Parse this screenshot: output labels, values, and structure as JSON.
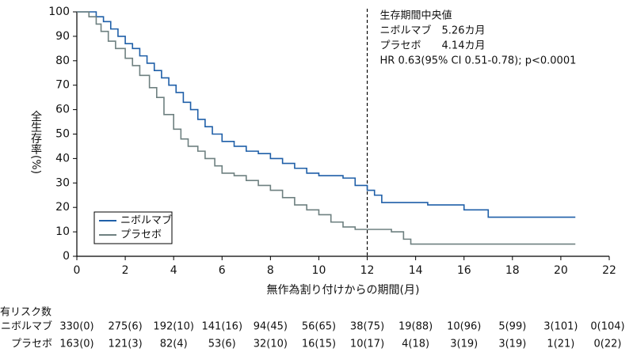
{
  "chart_data": {
    "type": "line",
    "y_label": "全生存率(%)",
    "x_label": "無作為割り付けからの期間(月)",
    "annotation": [
      "生存期間中央値",
      "ニボルマブ　5.26カ月",
      "プラセボ　　4.14カ月",
      "HR 0.63(95% CI 0.51-0.78); p<0.0001"
    ],
    "vline": 12,
    "legend_position": "lower left",
    "xlim": [
      0,
      22
    ],
    "xticks": [
      0,
      2,
      4,
      6,
      8,
      10,
      12,
      14,
      16,
      18,
      20,
      22
    ],
    "ylim": [
      0,
      100
    ],
    "yticks": [
      0,
      10,
      20,
      30,
      40,
      50,
      60,
      70,
      80,
      90,
      100
    ],
    "series": [
      {
        "name": "ニボルマブ",
        "color": "#1f5fa8",
        "x": [
          0,
          0.8,
          0.8,
          1.1,
          1.1,
          1.4,
          1.4,
          1.7,
          1.7,
          2,
          2,
          2.3,
          2.3,
          2.6,
          2.6,
          2.9,
          2.9,
          3.2,
          3.2,
          3.5,
          3.5,
          3.8,
          3.8,
          4.1,
          4.1,
          4.4,
          4.4,
          4.7,
          4.7,
          5,
          5,
          5.3,
          5.3,
          5.6,
          5.6,
          6,
          6,
          6.5,
          6.5,
          7,
          7,
          7.5,
          7.5,
          8,
          8,
          8.5,
          8.5,
          9,
          9,
          9.5,
          9.5,
          10,
          10,
          11,
          11,
          11.5,
          11.5,
          12,
          12,
          12.3,
          12.3,
          12.6,
          12.6,
          14.5,
          14.5,
          16,
          16,
          17,
          17,
          20.6
        ],
        "values": [
          100,
          100,
          98,
          98,
          96,
          96,
          93,
          93,
          90,
          90,
          87,
          87,
          85,
          85,
          82,
          82,
          79,
          79,
          76,
          76,
          73,
          73,
          70,
          70,
          67,
          67,
          63,
          63,
          60,
          60,
          56,
          56,
          53,
          53,
          50,
          50,
          47,
          47,
          45,
          45,
          43,
          43,
          42,
          42,
          40,
          40,
          38,
          38,
          36,
          36,
          34,
          34,
          33,
          33,
          32,
          32,
          29,
          29,
          27,
          27,
          25,
          25,
          22,
          22,
          21,
          21,
          19,
          19,
          16,
          16
        ]
      },
      {
        "name": "プラセボ",
        "color": "#6e8080",
        "x": [
          0,
          0.5,
          0.5,
          0.8,
          0.8,
          1,
          1,
          1.3,
          1.3,
          1.6,
          1.6,
          2,
          2,
          2.3,
          2.3,
          2.6,
          2.6,
          3,
          3,
          3.3,
          3.3,
          3.6,
          3.6,
          4,
          4,
          4.3,
          4.3,
          4.6,
          4.6,
          5,
          5,
          5.3,
          5.3,
          5.7,
          5.7,
          6,
          6,
          6.5,
          6.5,
          7,
          7,
          7.5,
          7.5,
          8,
          8,
          8.5,
          8.5,
          9,
          9,
          9.5,
          9.5,
          10,
          10,
          10.5,
          10.5,
          11,
          11,
          11.5,
          11.5,
          13,
          13,
          13.5,
          13.5,
          13.8,
          13.8,
          20.6
        ],
        "values": [
          100,
          100,
          98,
          98,
          95,
          95,
          92,
          92,
          88,
          88,
          85,
          85,
          81,
          81,
          78,
          78,
          74,
          74,
          69,
          69,
          65,
          65,
          58,
          58,
          52,
          52,
          48,
          48,
          45,
          45,
          43,
          43,
          40,
          40,
          37,
          37,
          34,
          34,
          33,
          33,
          31,
          31,
          29,
          29,
          27,
          27,
          24,
          24,
          21,
          21,
          19,
          19,
          17,
          17,
          14,
          14,
          12,
          12,
          11,
          11,
          10,
          10,
          7,
          7,
          5,
          5
        ]
      }
    ],
    "risk_table": {
      "title": "有リスク数",
      "rows": [
        {
          "name": "ニボルマブ",
          "values": [
            "330(0)",
            "275(6)",
            "192(10)",
            "141(16)",
            "94(45)",
            "56(65)",
            "38(75)",
            "19(88)",
            "10(96)",
            "5(99)",
            "3(101)",
            "0(104)"
          ]
        },
        {
          "name": "プラセボ",
          "values": [
            "163(0)",
            "121(3)",
            "82(4)",
            "53(6)",
            "32(10)",
            "16(15)",
            "10(17)",
            "4(18)",
            "3(19)",
            "3(19)",
            "1(21)",
            "0(22)"
          ]
        }
      ]
    }
  }
}
